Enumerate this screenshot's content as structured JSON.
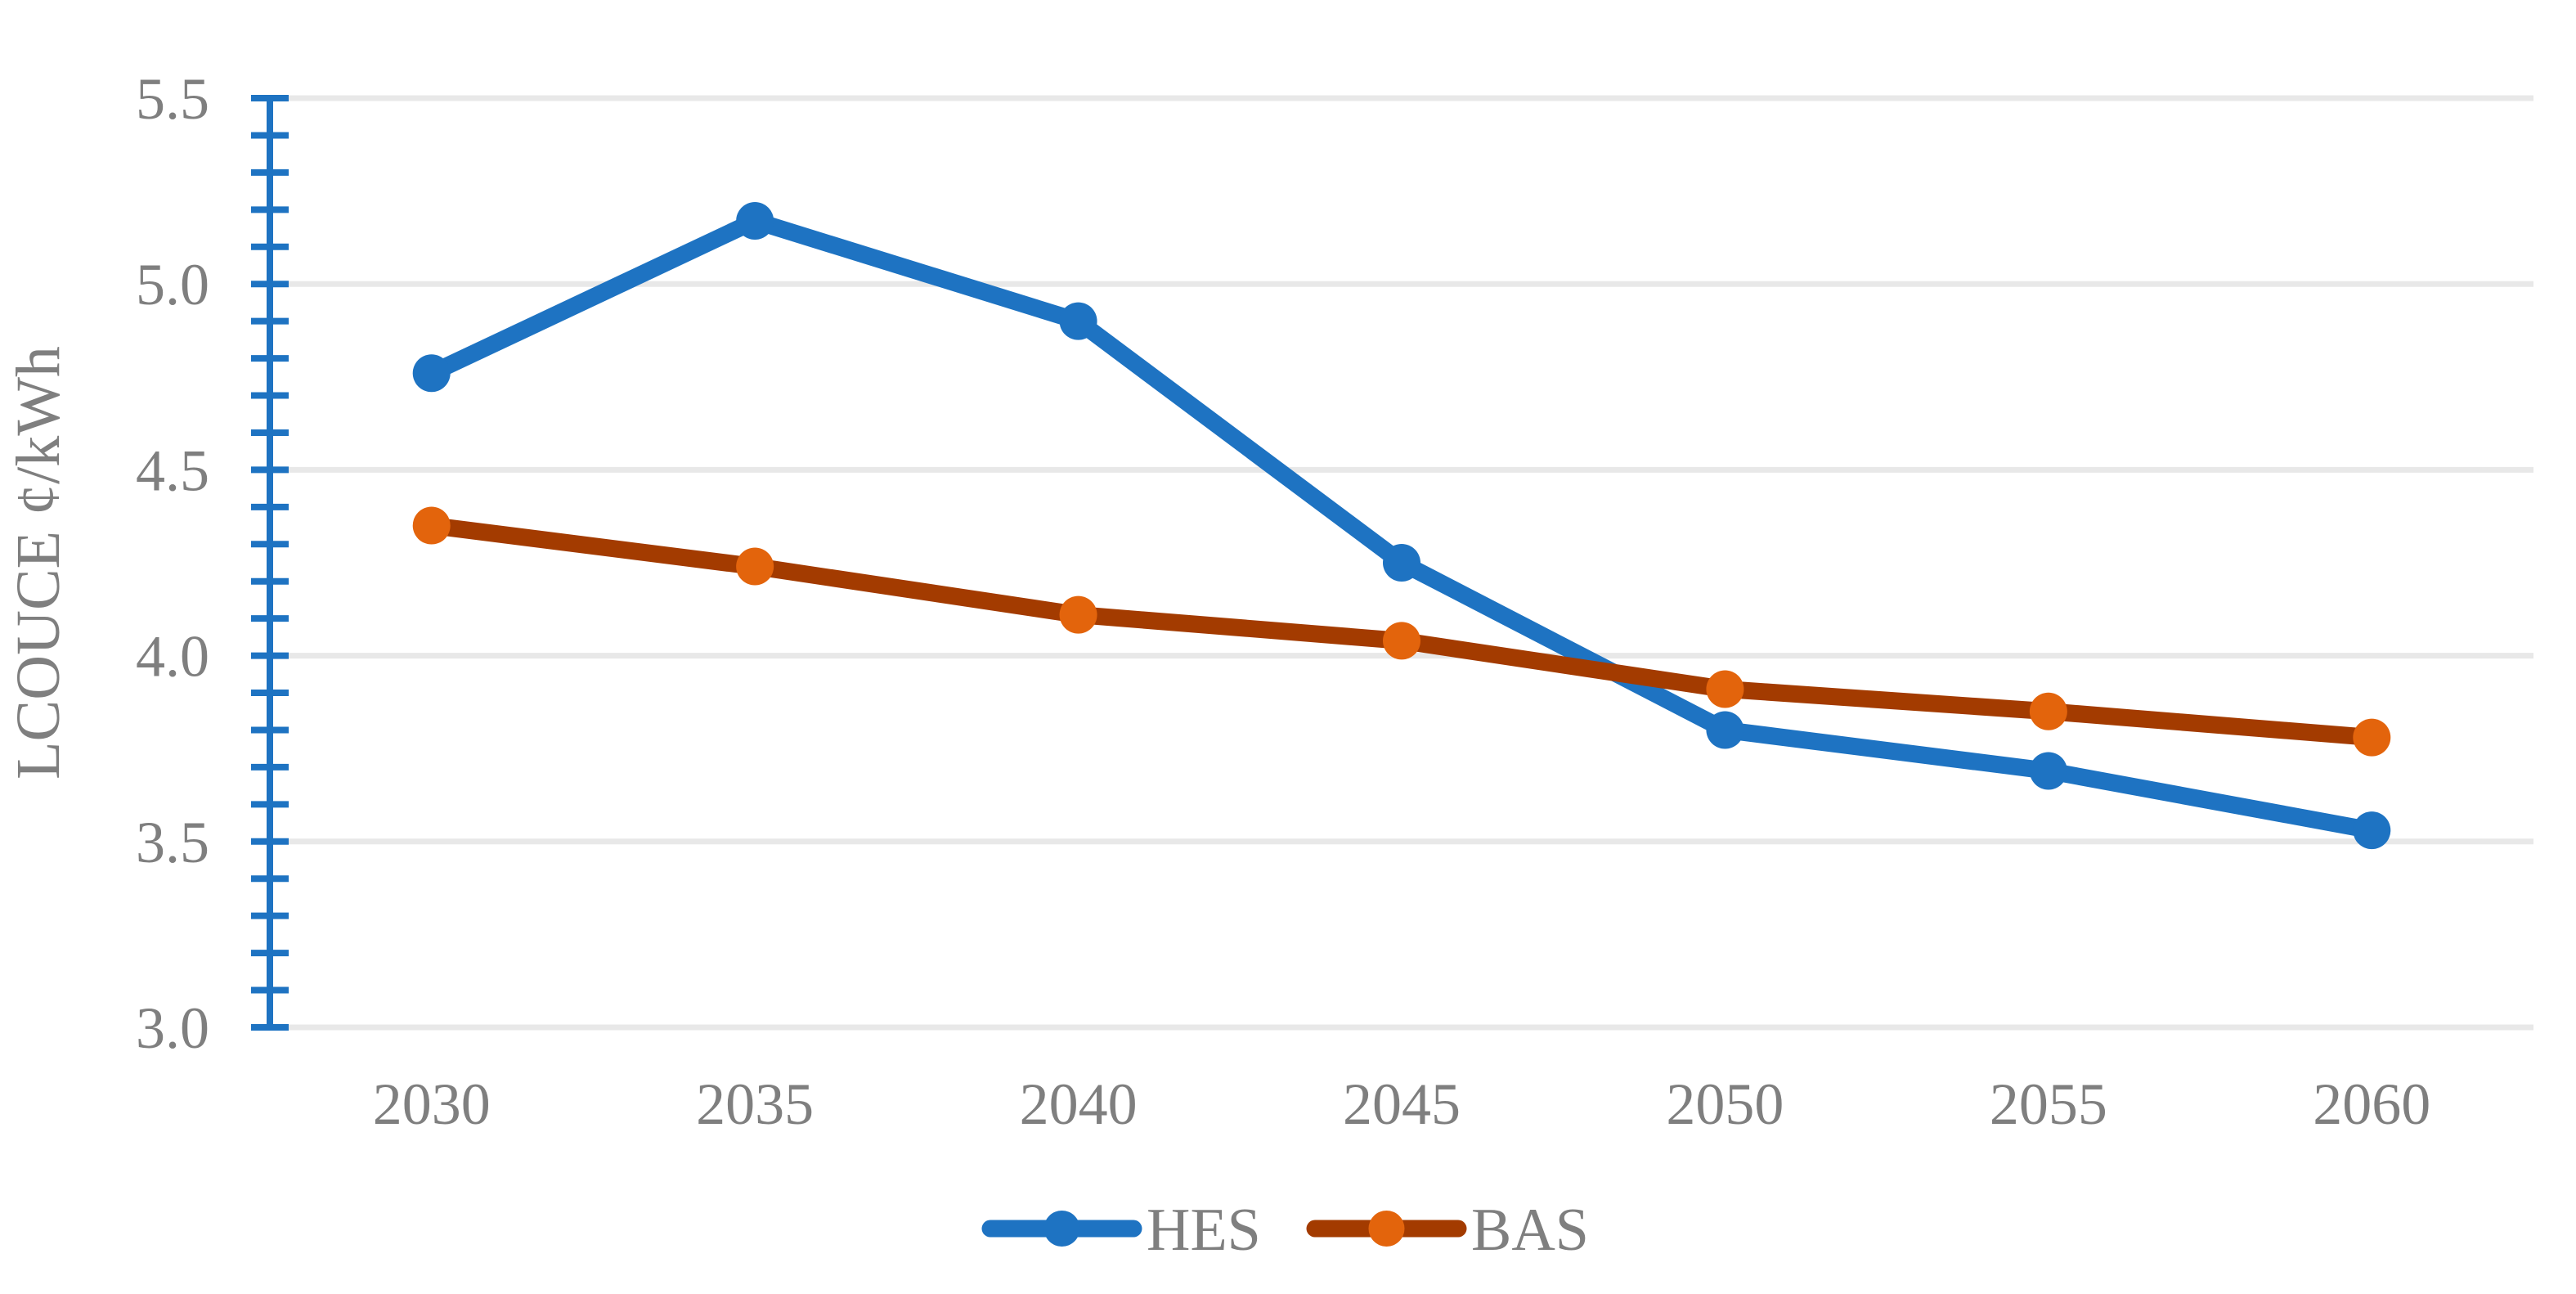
{
  "chart_data": {
    "type": "line",
    "title": "",
    "ylabel": "LCOUCE ¢/kWh",
    "xlabel": "",
    "categories": [
      "2030",
      "2035",
      "2040",
      "2045",
      "2050",
      "2055",
      "2060"
    ],
    "series": [
      {
        "name": "HES",
        "values": [
          4.76,
          5.17,
          4.9,
          4.25,
          3.8,
          3.69,
          3.53
        ],
        "line_color": "#1E73C2",
        "marker_color": "#1E73C2"
      },
      {
        "name": "BAS",
        "values": [
          4.35,
          4.24,
          4.11,
          4.04,
          3.91,
          3.85,
          3.78
        ],
        "line_color": "#A33B00",
        "marker_color": "#E3640C"
      }
    ],
    "ylim": [
      3.0,
      5.5
    ],
    "y_ticks": [
      3.0,
      3.5,
      4.0,
      4.5,
      5.0,
      5.5
    ],
    "y_tick_labels": [
      "3.0",
      "3.5",
      "4.0",
      "4.5",
      "5.0",
      "5.5"
    ],
    "minor_tick_step": 0.1,
    "grid": "horizontal-major",
    "legend_position": "bottom",
    "colors": {
      "axis": "#1E73C2",
      "grid": "#E8E8E8",
      "text": "#7F7F7F"
    }
  }
}
